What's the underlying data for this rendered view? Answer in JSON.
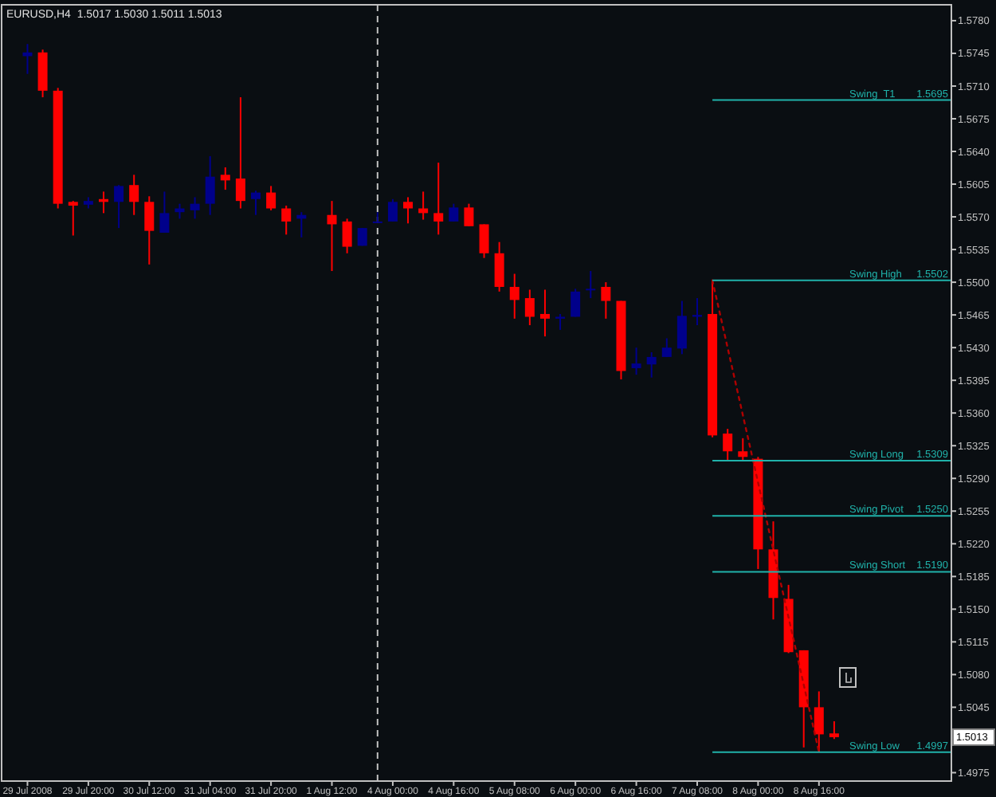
{
  "chart_data": {
    "type": "candlestick",
    "title": "EURUSD,H4  1.5017 1.5030 1.5011 1.5013",
    "categories": [
      "29 Jul 2008",
      null,
      null,
      null,
      "29 Jul 20:00",
      null,
      null,
      null,
      "30 Jul 12:00",
      null,
      null,
      null,
      "31 Jul 04:00",
      null,
      null,
      null,
      "31 Jul 20:00",
      null,
      null,
      null,
      "1 Aug 12:00",
      null,
      null,
      null,
      "4 Aug 00:00",
      null,
      null,
      null,
      "4 Aug 16:00",
      null,
      null,
      null,
      "5 Aug 08:00",
      null,
      null,
      null,
      "6 Aug 00:00",
      null,
      null,
      null,
      "6 Aug 16:00",
      null,
      null,
      null,
      "7 Aug 08:00",
      null,
      null,
      null,
      "8 Aug 00:00",
      null,
      null,
      null,
      "8 Aug 16:00",
      null,
      null,
      null,
      null,
      null,
      null,
      null
    ],
    "ohlc": [
      [
        1.5742,
        1.5755,
        1.5723,
        1.5746
      ],
      [
        1.5746,
        1.5749,
        1.5698,
        1.5705
      ],
      [
        1.5705,
        1.5708,
        1.5579,
        1.5584
      ],
      [
        1.5586,
        1.5587,
        1.555,
        1.5582
      ],
      [
        1.5583,
        1.5591,
        1.5579,
        1.5587
      ],
      [
        1.5589,
        1.5597,
        1.5574,
        1.5586
      ],
      [
        1.5586,
        1.5604,
        1.5558,
        1.5603
      ],
      [
        1.5604,
        1.5615,
        1.5572,
        1.5586
      ],
      [
        1.5586,
        1.5592,
        1.5519,
        1.5555
      ],
      [
        1.5553,
        1.5597,
        1.5553,
        1.5574
      ],
      [
        1.5575,
        1.5584,
        1.5568,
        1.5579
      ],
      [
        1.5577,
        1.5591,
        1.5568,
        1.5584
      ],
      [
        1.5584,
        1.5635,
        1.5572,
        1.5613
      ],
      [
        1.5615,
        1.5623,
        1.5599,
        1.5609
      ],
      [
        1.5611,
        1.5698,
        1.5579,
        1.5587
      ],
      [
        1.5589,
        1.5598,
        1.5572,
        1.5596
      ],
      [
        1.5596,
        1.5603,
        1.5577,
        1.5579
      ],
      [
        1.5579,
        1.5582,
        1.5551,
        1.5565
      ],
      [
        1.5568,
        1.5575,
        1.5548,
        1.5572
      ],
      null,
      [
        1.5572,
        1.5587,
        1.5512,
        1.5562
      ],
      [
        1.5565,
        1.5568,
        1.5531,
        1.5538
      ],
      [
        1.5539,
        1.5558,
        1.5539,
        1.5558
      ],
      [
        1.5564,
        1.5575,
        1.5564,
        1.5565
      ],
      [
        1.5565,
        1.5589,
        1.5565,
        1.5586
      ],
      [
        1.5586,
        1.5591,
        1.5563,
        1.5579
      ],
      [
        1.5579,
        1.5597,
        1.5567,
        1.5574
      ],
      [
        1.5574,
        1.5628,
        1.5551,
        1.5565
      ],
      [
        1.5565,
        1.5584,
        1.5565,
        1.558
      ],
      [
        1.558,
        1.5584,
        1.556,
        1.556
      ],
      [
        1.5562,
        1.5562,
        1.5526,
        1.5531
      ],
      [
        1.5531,
        1.5543,
        1.549,
        1.5495
      ],
      [
        1.5495,
        1.5509,
        1.5461,
        1.5481
      ],
      [
        1.5483,
        1.5492,
        1.5454,
        1.5463
      ],
      [
        1.5466,
        1.5492,
        1.5442,
        1.5461
      ],
      [
        1.5461,
        1.5466,
        1.5449,
        1.5463
      ],
      [
        1.5463,
        1.5493,
        1.5463,
        1.549
      ],
      [
        1.5492,
        1.5512,
        1.5483,
        1.5493
      ],
      [
        1.5495,
        1.55,
        1.5461,
        1.548
      ],
      [
        1.548,
        1.548,
        1.5396,
        1.5405
      ],
      [
        1.5408,
        1.543,
        1.5401,
        1.5413
      ],
      [
        1.5412,
        1.5425,
        1.5398,
        1.542
      ],
      [
        1.542,
        1.544,
        1.542,
        1.543
      ],
      [
        1.5429,
        1.548,
        1.5423,
        1.5464
      ],
      [
        1.5463,
        1.5483,
        1.5454,
        1.5465
      ],
      [
        1.5466,
        1.5502,
        1.5334,
        1.5336
      ],
      [
        1.5338,
        1.5343,
        1.5309,
        1.5319
      ],
      [
        1.5319,
        1.5333,
        1.5309,
        1.5313
      ],
      [
        1.5311,
        1.5313,
        1.5193,
        1.5214
      ],
      [
        1.5214,
        1.5244,
        1.5139,
        1.5162
      ],
      [
        1.5161,
        1.5176,
        1.5103,
        1.5104
      ],
      [
        1.5106,
        1.5106,
        1.5002,
        1.5045
      ],
      [
        1.5045,
        1.5062,
        1.4997,
        1.5016
      ],
      [
        1.5017,
        1.503,
        1.5011,
        1.5013
      ],
      null,
      null,
      null,
      null,
      null,
      null
    ],
    "colors": [
      "#00008b",
      "#ff0000",
      "#ff0000",
      "#ff0000",
      "#00008b",
      "#ff0000",
      "#00008b",
      "#ff0000",
      "#ff0000",
      "#00008b",
      "#00008b",
      "#00008b",
      "#00008b",
      "#ff0000",
      "#ff0000",
      "#00008b",
      "#ff0000",
      "#ff0000",
      "#00008b",
      null,
      "#ff0000",
      "#ff0000",
      "#00008b",
      "#00008b",
      "#00008b",
      "#ff0000",
      "#ff0000",
      "#ff0000",
      "#00008b",
      "#ff0000",
      "#ff0000",
      "#ff0000",
      "#ff0000",
      "#ff0000",
      "#ff0000",
      "#00008b",
      "#00008b",
      "#00008b",
      "#ff0000",
      "#ff0000",
      "#00008b",
      "#00008b",
      "#00008b",
      "#00008b",
      "#00008b",
      "#ff0000",
      "#ff0000",
      "#ff0000",
      "#ff0000",
      "#ff0000",
      "#ff0000",
      "#ff0000",
      "#ff0000",
      "#ff0000",
      null,
      null,
      null,
      null,
      null,
      null
    ],
    "series": [
      {
        "type": "line",
        "color": "#b00000",
        "line_style": "dotted",
        "values": [
          null,
          null,
          null,
          null,
          null,
          null,
          null,
          null,
          null,
          null,
          null,
          null,
          null,
          null,
          null,
          null,
          null,
          null,
          null,
          null,
          null,
          null,
          null,
          null,
          null,
          null,
          null,
          null,
          null,
          null,
          null,
          null,
          null,
          null,
          null,
          null,
          null,
          null,
          null,
          null,
          null,
          null,
          null,
          null,
          null,
          1.5502,
          null,
          null,
          null,
          null,
          null,
          null,
          1.4997,
          null,
          null,
          null,
          null,
          null,
          null,
          null
        ]
      }
    ],
    "ylim": [
      1.4966,
      1.5797
    ],
    "yticks": [
      {
        "value": 1.578,
        "label": "1.5780"
      },
      {
        "value": 1.5745,
        "label": "1.5745"
      },
      {
        "value": 1.571,
        "label": "1.5710"
      },
      {
        "value": 1.5675,
        "label": "1.5675"
      },
      {
        "value": 1.564,
        "label": "1.5640"
      },
      {
        "value": 1.5605,
        "label": "1.5605"
      },
      {
        "value": 1.557,
        "label": "1.5570"
      },
      {
        "value": 1.5535,
        "label": "1.5535"
      },
      {
        "value": 1.55,
        "label": "1.5500"
      },
      {
        "value": 1.5465,
        "label": "1.5465"
      },
      {
        "value": 1.543,
        "label": "1.5430"
      },
      {
        "value": 1.5395,
        "label": "1.5395"
      },
      {
        "value": 1.536,
        "label": "1.5360"
      },
      {
        "value": 1.5325,
        "label": "1.5325"
      },
      {
        "value": 1.529,
        "label": "1.5290"
      },
      {
        "value": 1.5255,
        "label": "1.5255"
      },
      {
        "value": 1.522,
        "label": "1.5220"
      },
      {
        "value": 1.5185,
        "label": "1.5185"
      },
      {
        "value": 1.515,
        "label": "1.5150"
      },
      {
        "value": 1.5115,
        "label": "1.5115"
      },
      {
        "value": 1.508,
        "label": "1.5080"
      },
      {
        "value": 1.5045,
        "label": "1.5045"
      },
      {
        "value": 1.4975,
        "label": "1.4975"
      }
    ],
    "ref_lines": [
      {
        "axis": "y",
        "value": 1.5695,
        "label": "Swing  T1",
        "color": "#20b2aa"
      },
      {
        "axis": "y",
        "value": 1.5502,
        "label": "Swing High",
        "color": "#20b2aa"
      },
      {
        "axis": "y",
        "value": 1.5309,
        "label": "Swing Long",
        "color": "#20b2aa"
      },
      {
        "axis": "y",
        "value": 1.525,
        "label": "Swing Pivot",
        "color": "#20b2aa"
      },
      {
        "axis": "y",
        "value": 1.519,
        "label": "Swing Short",
        "color": "#20b2aa"
      },
      {
        "axis": "y",
        "value": 1.4997,
        "label": "Swing Low",
        "color": "#20b2aa"
      }
    ],
    "annotations": [
      {
        "text": "1.5013",
        "y": 1.5013
      },
      {
        "text": "1.5695",
        "y": 1.5695
      },
      {
        "text": "1.5502",
        "y": 1.5502
      },
      {
        "text": "1.5309",
        "y": 1.5309
      },
      {
        "text": "1.5250",
        "y": 1.525
      },
      {
        "text": "1.5190",
        "y": 1.519
      },
      {
        "text": "1.4997",
        "y": 1.4997
      }
    ]
  }
}
